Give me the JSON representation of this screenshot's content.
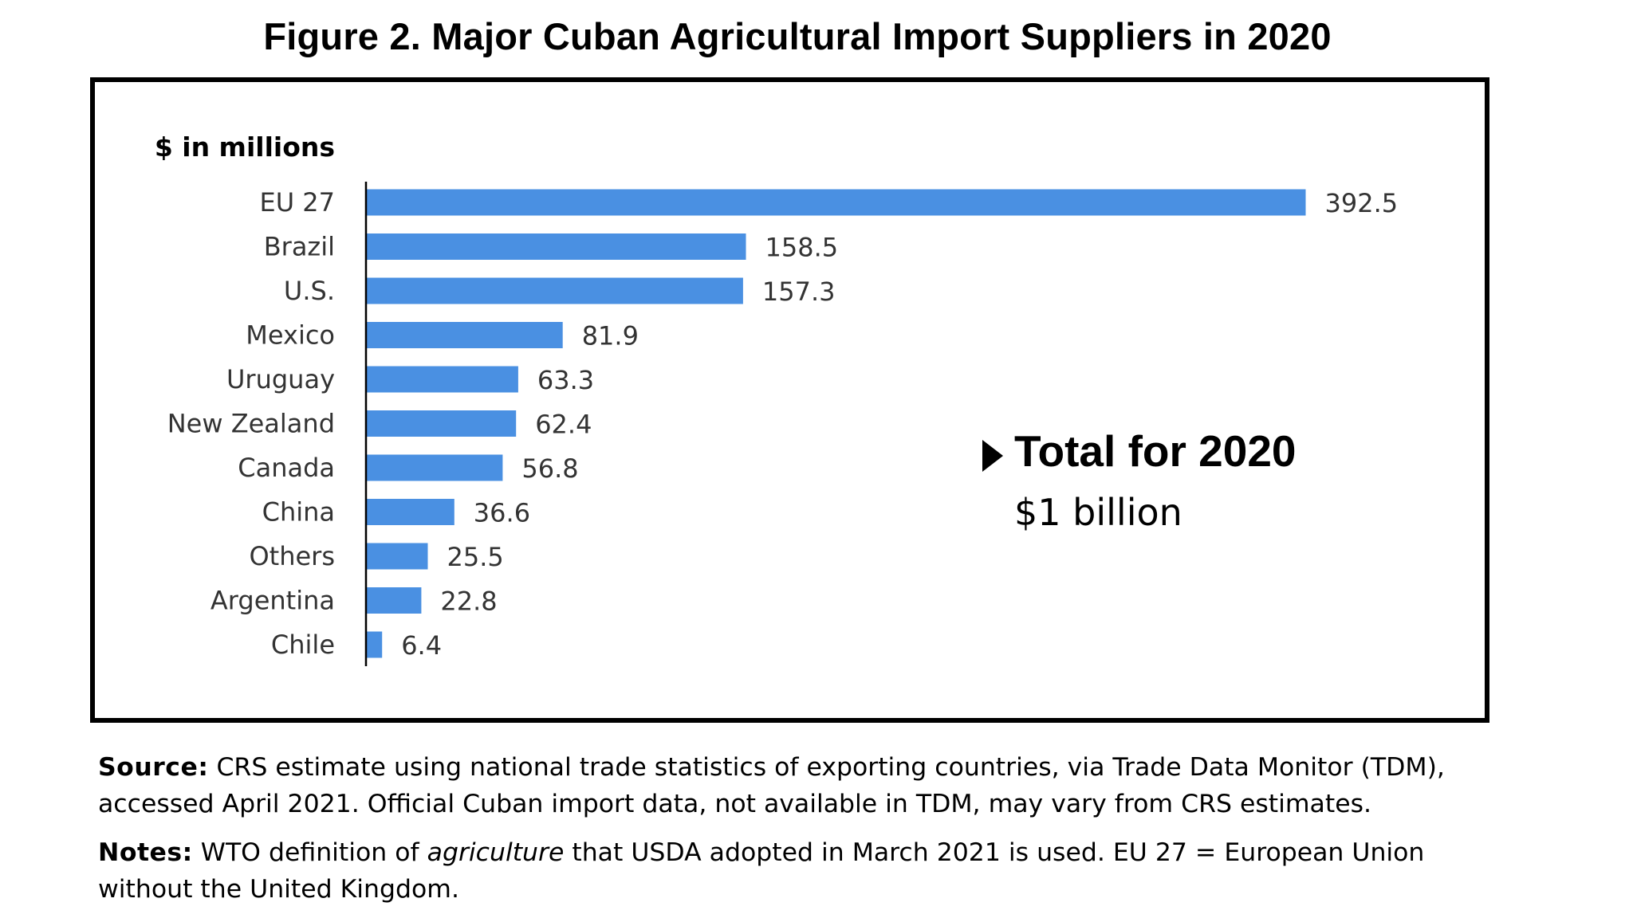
{
  "figure": {
    "title": "Figure 2. Major Cuban Agricultural Import Suppliers in 2020"
  },
  "chart_data": {
    "type": "bar",
    "orientation": "horizontal",
    "unit_label": "$ in millions",
    "categories": [
      "EU 27",
      "Brazil",
      "U.S.",
      "Mexico",
      "Uruguay",
      "New Zealand",
      "Canada",
      "China",
      "Others",
      "Argentina",
      "Chile"
    ],
    "values": [
      392.5,
      158.5,
      157.3,
      81.9,
      63.3,
      62.4,
      56.8,
      36.6,
      25.5,
      22.8,
      6.4
    ],
    "data_labels": [
      "392.5",
      "158.5",
      "157.3",
      "81.9",
      "63.3",
      "62.4",
      "56.8",
      "36.6",
      "25.5",
      "22.8",
      "6.4"
    ],
    "xlim": [
      0,
      400
    ],
    "grid": false,
    "bar_color": "#4A90E2",
    "annotation": {
      "heading": "Total for 2020",
      "value": "$1 billion"
    }
  },
  "footnotes": {
    "source_label": "Source:",
    "source_text": "CRS estimate using national trade statistics of exporting countries, via Trade Data Monitor (TDM), accessed April 2021. Official Cuban import data, not available in TDM, may vary from CRS estimates.",
    "notes_label": "Notes:",
    "notes_text_1": "WTO definition of",
    "notes_italic": "agriculture",
    "notes_text_2": "that USDA adopted in March 2021 is used. EU 27 = European Union without the United Kingdom."
  }
}
